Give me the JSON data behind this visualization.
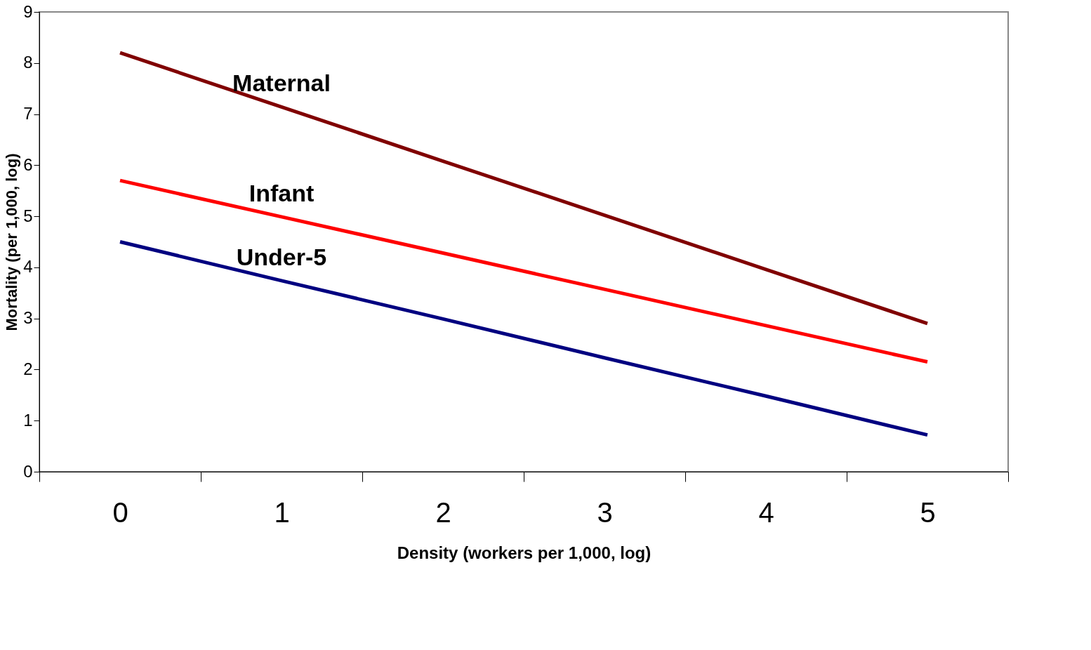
{
  "chart_data": {
    "type": "line",
    "xlabel": "Density (workers per 1,000, log)",
    "ylabel": "Mortality (per 1,000, log)",
    "categories": [
      "0",
      "1",
      "2",
      "3",
      "4",
      "5"
    ],
    "series": [
      {
        "name": "Maternal",
        "color": "#800000",
        "values": [
          8.2,
          7.14,
          6.08,
          5.02,
          3.96,
          2.9
        ]
      },
      {
        "name": "Infant",
        "color": "#ff0000",
        "values": [
          5.7,
          4.99,
          4.28,
          3.57,
          2.86,
          2.15
        ]
      },
      {
        "name": "Under-5",
        "color": "#000080",
        "values": [
          4.5,
          3.74,
          2.99,
          2.23,
          1.48,
          0.72
        ]
      }
    ],
    "ylim": [
      0,
      9
    ],
    "yticks": [
      0,
      1,
      2,
      3,
      4,
      5,
      6,
      7,
      8,
      9
    ],
    "grid": false,
    "legend": false,
    "marker": "none",
    "line_style": "solid"
  }
}
